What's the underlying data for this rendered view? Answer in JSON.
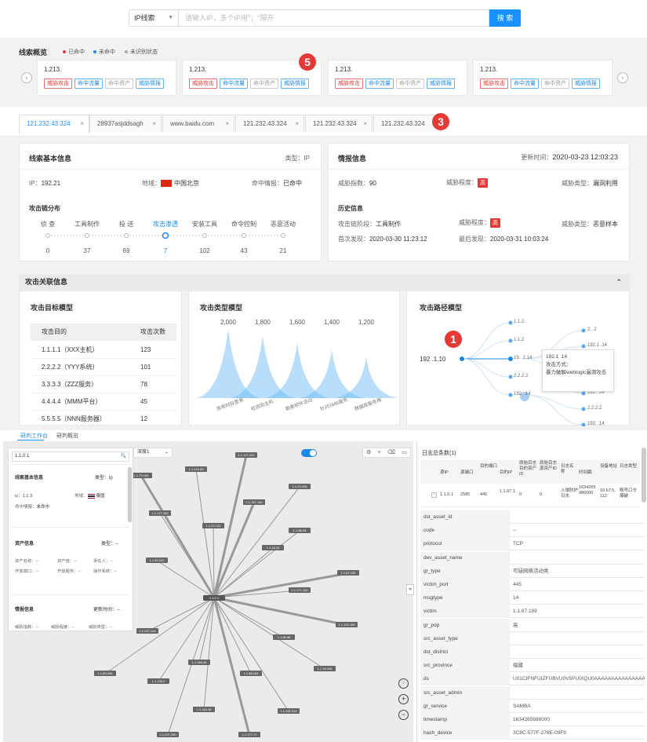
{
  "search": {
    "type_label": "IP线索",
    "placeholder": "请输入IP，多个IP用\"；\"隔开",
    "button": "搜 索"
  },
  "overview": {
    "title": "线索概览",
    "legend": [
      {
        "label": "已命中",
        "color": "#e53935"
      },
      {
        "label": "未命中",
        "color": "#1e88e5"
      },
      {
        "label": "未识别状态",
        "color": "#aaaaaa"
      }
    ],
    "cards": [
      {
        "ip": "1.213.",
        "tags": [
          "威胁攻击",
          "命中流量",
          "命中资产",
          "威胁情报"
        ]
      },
      {
        "ip": "1.213.",
        "tags": [
          "威胁攻击",
          "命中流量",
          "命中资产",
          "威胁情报"
        ]
      },
      {
        "ip": "1.213.",
        "tags": [
          "威胁攻击",
          "命中流量",
          "命中资产",
          "威胁情报"
        ]
      },
      {
        "ip": "1.213.",
        "tags": [
          "威胁攻击",
          "命中流量",
          "命中资产",
          "威胁情报"
        ]
      }
    ],
    "badge": "5"
  },
  "tabs": [
    {
      "label": "121.232.43.324",
      "close": "×"
    },
    {
      "label": "28937asjddsagh",
      "close": "×"
    },
    {
      "label": "www.baidu.com",
      "close": "×"
    },
    {
      "label": "121.232.43.324",
      "close": "×"
    },
    {
      "label": "121.232.43.324",
      "close": "×"
    },
    {
      "label": "121.232.43.324",
      "close": ""
    }
  ],
  "tab_badge": "3",
  "basic": {
    "title": "线索基本信息",
    "type": "类型：IP",
    "ip_label": "IP：",
    "ip": "192.21",
    "region_label": "地域：",
    "region": "中国北京",
    "hit_label": "命中情报：",
    "hit": "已命中",
    "chain_title": "攻击链分布",
    "chain": [
      {
        "label": "侦 查",
        "value": "0"
      },
      {
        "label": "工具制作",
        "value": "37"
      },
      {
        "label": "投 送",
        "value": "69"
      },
      {
        "label": "攻击渗透",
        "value": "7"
      },
      {
        "label": "安装工具",
        "value": "102"
      },
      {
        "label": "命令控制",
        "value": "43"
      },
      {
        "label": "恶意活动",
        "value": "21"
      }
    ]
  },
  "intel": {
    "title": "情报信息",
    "updated_label": "更新时间：",
    "updated": "2020-03-23  12:03:23",
    "score_label": "威胁指数：",
    "score": "90",
    "level_label": "威胁程度：",
    "level": "高",
    "type_label": "威胁类型：",
    "type": "漏洞利用",
    "history_title": "历史信息",
    "stage_label": "攻击链阶段：",
    "stage": "工具制作",
    "h_level_label": "威胁程度：",
    "h_level": "高",
    "h_type_label": "威胁类型：",
    "h_type": "恶意样本",
    "first_label": "首次发现：",
    "first": "2020-03-30 11:23:12",
    "last_label": "最后发现：",
    "last": "2020-03-31 10:03:24"
  },
  "assoc": {
    "title": "攻击关联信息",
    "target_title": "攻击目标模型",
    "target_header": [
      "攻击目的",
      "攻击次数"
    ],
    "targets": [
      {
        "name": "1.1.1.1（XXX主机）",
        "count": "123"
      },
      {
        "name": "2.2.2.2（YYY系统）",
        "count": "101"
      },
      {
        "name": "3.3.3.3（ZZZ服务）",
        "count": "78"
      },
      {
        "name": "4.4.4.4（MMM平台）",
        "count": "45"
      },
      {
        "name": "5.5.5.5（NNN服务器）",
        "count": "12"
      }
    ],
    "type_title": "攻击类型模型",
    "path_title": "攻击路径模型",
    "path_badge": "1",
    "path_root": "192    .1.10",
    "path_mid": [
      "1.1.2",
      "1.1.2",
      "19.  .2.14",
      "2.2.2.2",
      "192.  .14"
    ],
    "path_right": [
      "2.  .2",
      "192.1   .14",
      "192.  .14",
      "2.2.2.2",
      "192.  .14"
    ],
    "tooltip": {
      "ip": "192.1   .14",
      "label": "攻击方式：",
      "text": "暴力破解weblogic漏洞攻击"
    }
  },
  "chart_data": {
    "type": "area",
    "categories": [
      "异常时段登录",
      "检测到主机",
      "勒索软件活动",
      "针对SMB服务",
      "数据库服务再"
    ],
    "values": [
      2000,
      1800,
      1600,
      1400,
      1200
    ],
    "ylim": [
      0,
      2000
    ]
  },
  "bottom_tabs": [
    "研判工作台",
    "研判概览"
  ],
  "graph": {
    "search": "1.1.0.1",
    "depth": "深度1",
    "center": "1.1.0.1",
    "nodes": [
      "1.1.147.242",
      "1.1.79.185",
      "1.1.219.65",
      "1.1.23.208",
      "1.1.177.162",
      "1.1.157.183",
      "1.1.22.132",
      "1.1.88.28",
      "1.1.18.28",
      "1.1.20.152",
      "1.1.87.190",
      "1.1.171.233",
      "1.1.227.108",
      "1.1.105.165",
      "1.1.86.88",
      "1.1.169.28",
      "1.1.68.163",
      "1.1.28.246",
      "1.1.80.248",
      "1.1.135.0",
      "1.1.164.45",
      "1.1.152.216",
      "1.1.237.250",
      "1.1.177.71"
    ],
    "popup": {
      "basic_title": "线索基本信息",
      "basic_type": "类型：ip",
      "ip_label": "ip：",
      "ip": "1.1     3",
      "region_label": "地域：",
      "region": "泰国",
      "hit_label": "命中情报：",
      "hit": "未命中",
      "asset_title": "资产信息",
      "asset_type": "类型：--",
      "asset_row1": [
        "资产名称：--",
        "资产值：--",
        "责任人：--"
      ],
      "asset_row2": [
        "开放端口：--",
        "开放服务：--",
        "操作系统：--"
      ],
      "intel_title": "情报信息",
      "intel_time": "更新时间：--",
      "intel_row": [
        "威胁指数：--",
        "威胁程度：--",
        "威胁类型：--"
      ]
    }
  },
  "log": {
    "title": "日志总条数(1)",
    "headers": [
      "源IP",
      "源端口",
      "目的端口",
      "目的IP",
      "原始目志目的资产ID",
      "原始目志源资产ID",
      "日志名称",
      "时间戳",
      "设备地址",
      "日志类型"
    ],
    "row": [
      "1.1.0.1",
      "2585",
      "445",
      "1.1.87.1",
      "0",
      "0",
      "入侵防护日志",
      "1634265986000",
      "10.67.5.112",
      "账号口令爆破"
    ],
    "details": [
      {
        "k": "dst_asset_id",
        "v": ""
      },
      {
        "k": "code",
        "v": "--"
      },
      {
        "k": "protocol",
        "v": "TCP"
      },
      {
        "k": "dev_asset_name",
        "v": ""
      },
      {
        "k": "gr_type",
        "v": "可疑网络活动类"
      },
      {
        "k": "victim_port",
        "v": "445"
      },
      {
        "k": "msgtype",
        "v": "14"
      },
      {
        "k": "victim",
        "v": "1.1.87.189"
      },
      {
        "k": "gr_pop",
        "v": "高"
      },
      {
        "k": "src_asset_type",
        "v": ""
      },
      {
        "k": "dst_district",
        "v": ""
      },
      {
        "k": "src_province",
        "v": "福建"
      },
      {
        "k": "ds",
        "v": "U01CIFNFUIZFUBVU0V5PUIXQU0AAAAAAAAAAAAAAAAAAAAAAAAAAAAAAAAAAgRE9NQUIOPURGSIgAAAAA"
      },
      {
        "k": "src_asset_admin",
        "v": ""
      },
      {
        "k": "gr_service",
        "v": "SAMBA"
      },
      {
        "k": "timestamp",
        "v": "1634265986000"
      },
      {
        "k": "hash_device",
        "v": "3C8C-577F-278E-09F9"
      }
    ]
  }
}
